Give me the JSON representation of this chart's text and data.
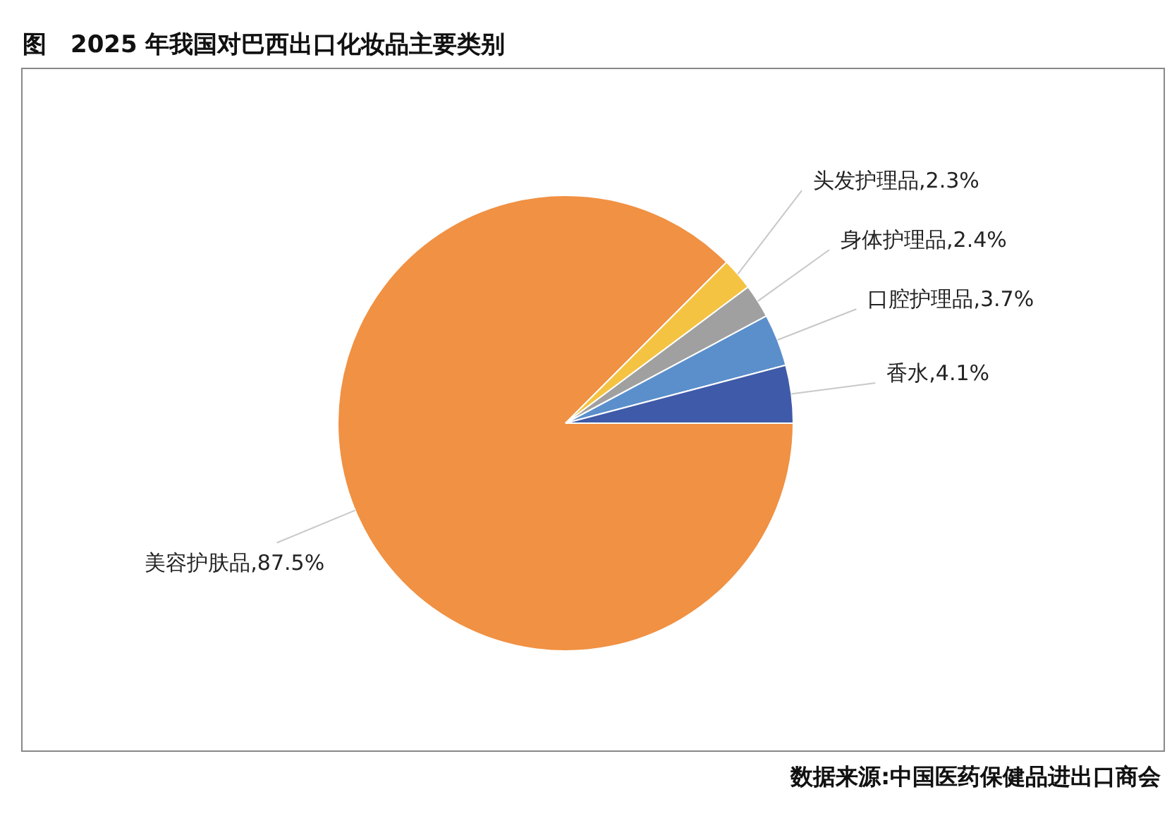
{
  "chart_data": {
    "type": "pie",
    "title": "图　2025 年我国对巴西出口化妆品主要类别",
    "categories": [
      "美容护肤品",
      "头发护理品",
      "身体护理品",
      "口腔护理品",
      "香水"
    ],
    "values": [
      87.5,
      2.3,
      2.4,
      3.7,
      4.1
    ],
    "value_labels": [
      "87.5%",
      "2.3%",
      "2.4%",
      "3.7%",
      "4.1%"
    ],
    "colors": [
      "#f09143",
      "#f5c342",
      "#a0a0a0",
      "#5b8fcc",
      "#3f5aa8"
    ],
    "annotations": [
      "数据来源:中国医药保健品进出口商会"
    ]
  }
}
